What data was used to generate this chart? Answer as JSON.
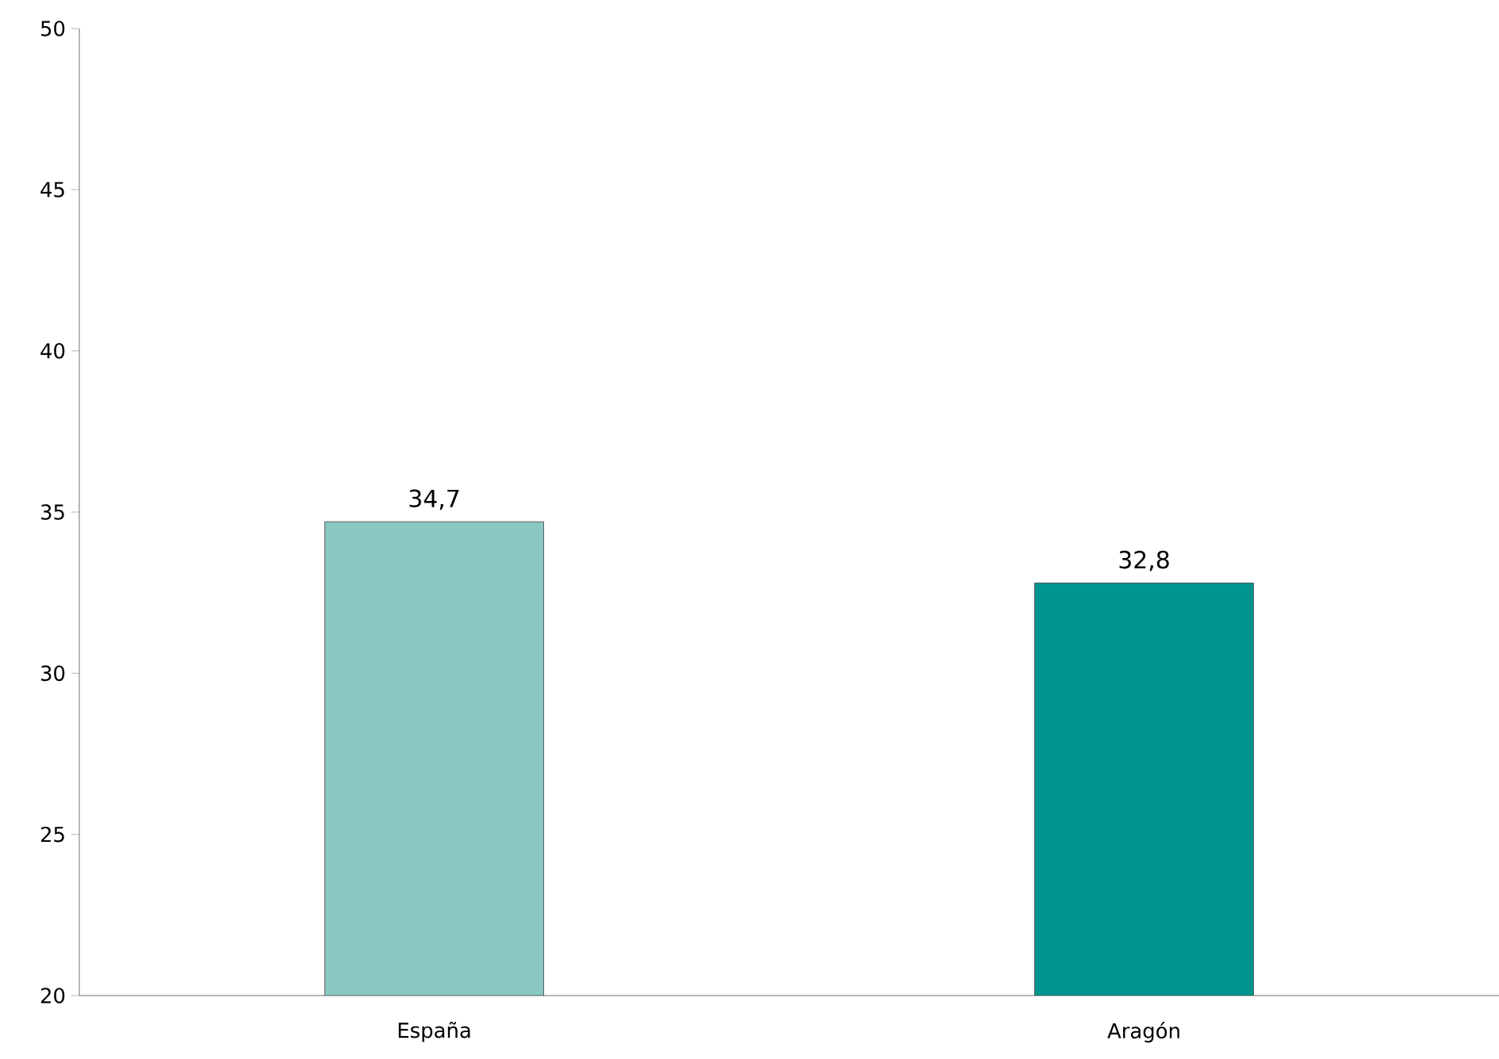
{
  "chart_data": {
    "type": "bar",
    "categories": [
      "España",
      "Aragón"
    ],
    "values": [
      34.7,
      32.8
    ],
    "value_labels": [
      "34,7",
      "32,8"
    ],
    "colors": [
      "#8ac8c4",
      "#009490"
    ],
    "ylim": [
      20,
      50
    ],
    "yticks": [
      20,
      25,
      30,
      35,
      40,
      45,
      50
    ],
    "grid": false
  }
}
